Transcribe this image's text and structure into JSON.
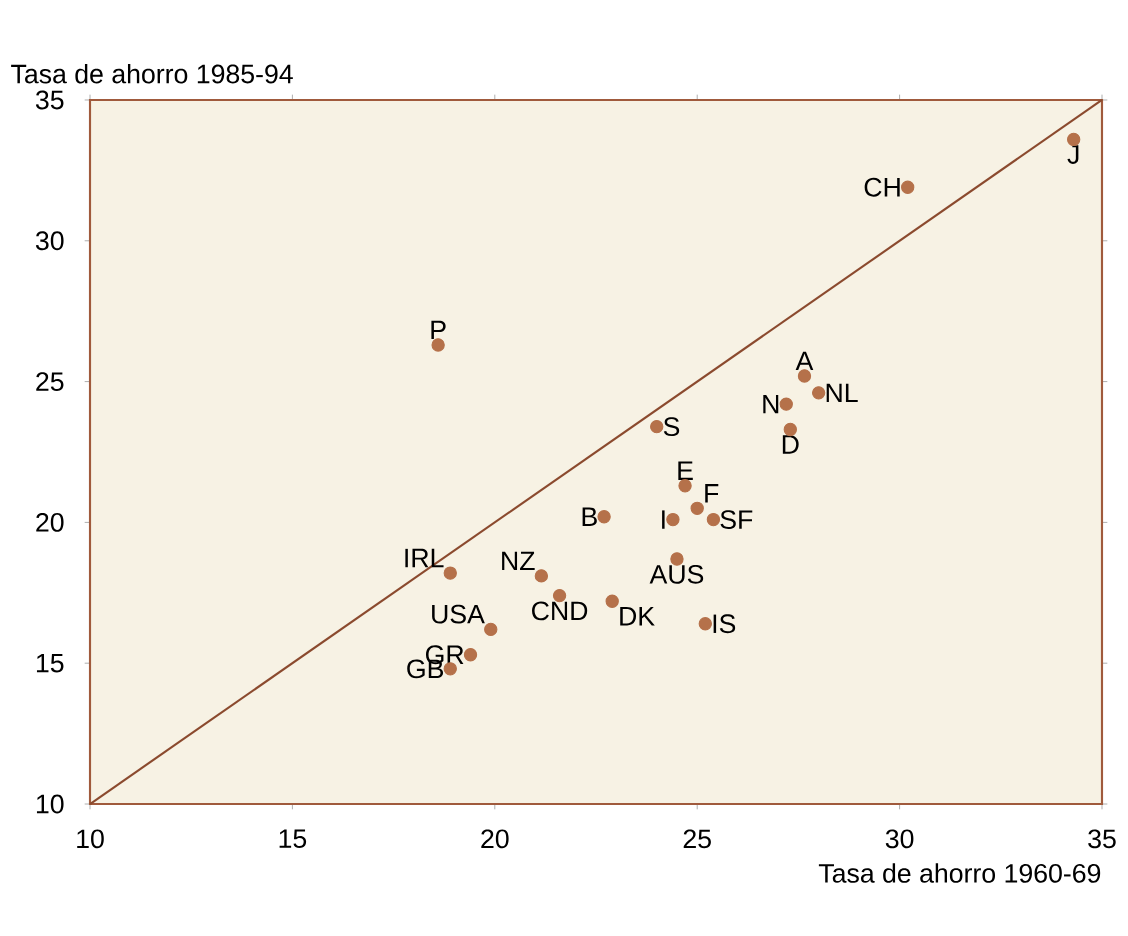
{
  "chart_data": {
    "type": "scatter",
    "ylabel": "Tasa de ahorro 1985-94",
    "xlabel": "Tasa de ahorro 1960-69",
    "xlim": [
      10,
      35
    ],
    "ylim": [
      10,
      35
    ],
    "xticks": [
      10,
      15,
      20,
      25,
      30,
      35
    ],
    "yticks": [
      10,
      15,
      20,
      25,
      30,
      35
    ],
    "grid": false,
    "series": [
      {
        "color": "#b5714a",
        "x": [
          18.6,
          24.0,
          24.7,
          25.0,
          24.4,
          25.4,
          22.7,
          18.9,
          21.15,
          21.6,
          22.9,
          19.9,
          19.4,
          18.9,
          24.5,
          25.2,
          34.3,
          30.2,
          27.65,
          28.0,
          27.2,
          27.3
        ],
        "values": [
          26.3,
          23.4,
          21.3,
          20.5,
          20.1,
          20.1,
          20.2,
          18.2,
          18.1,
          17.4,
          17.2,
          16.2,
          15.3,
          14.8,
          18.7,
          16.4,
          33.6,
          31.9,
          25.2,
          24.6,
          24.2,
          23.3
        ]
      },
      {
        "type": "line",
        "color": "#8b4a2e",
        "x": [
          10,
          35
        ],
        "values": [
          10,
          35
        ]
      }
    ],
    "annotations": [
      {
        "text": "P",
        "x": 18.6,
        "y": 26.3
      },
      {
        "text": "S",
        "x": 24.0,
        "y": 23.4
      },
      {
        "text": "E",
        "x": 24.7,
        "y": 21.3
      },
      {
        "text": "F",
        "x": 25.0,
        "y": 20.5
      },
      {
        "text": "I",
        "x": 24.4,
        "y": 20.1
      },
      {
        "text": "SF",
        "x": 25.4,
        "y": 20.1
      },
      {
        "text": "B",
        "x": 22.7,
        "y": 20.2
      },
      {
        "text": "IRL",
        "x": 18.9,
        "y": 18.2
      },
      {
        "text": "NZ",
        "x": 21.15,
        "y": 18.1
      },
      {
        "text": "CND",
        "x": 21.6,
        "y": 17.4
      },
      {
        "text": "DK",
        "x": 22.9,
        "y": 17.2
      },
      {
        "text": "USA",
        "x": 19.9,
        "y": 16.2
      },
      {
        "text": "GR",
        "x": 19.4,
        "y": 15.3
      },
      {
        "text": "GB",
        "x": 18.9,
        "y": 14.8
      },
      {
        "text": "AUS",
        "x": 24.5,
        "y": 18.7
      },
      {
        "text": "IS",
        "x": 25.2,
        "y": 16.4
      },
      {
        "text": "J",
        "x": 34.3,
        "y": 33.6
      },
      {
        "text": "CH",
        "x": 30.2,
        "y": 31.9
      },
      {
        "text": "A",
        "x": 27.65,
        "y": 25.2
      },
      {
        "text": "NL",
        "x": 28.0,
        "y": 24.6
      },
      {
        "text": "N",
        "x": 27.2,
        "y": 24.2
      },
      {
        "text": "D",
        "x": 27.3,
        "y": 23.3
      }
    ]
  }
}
